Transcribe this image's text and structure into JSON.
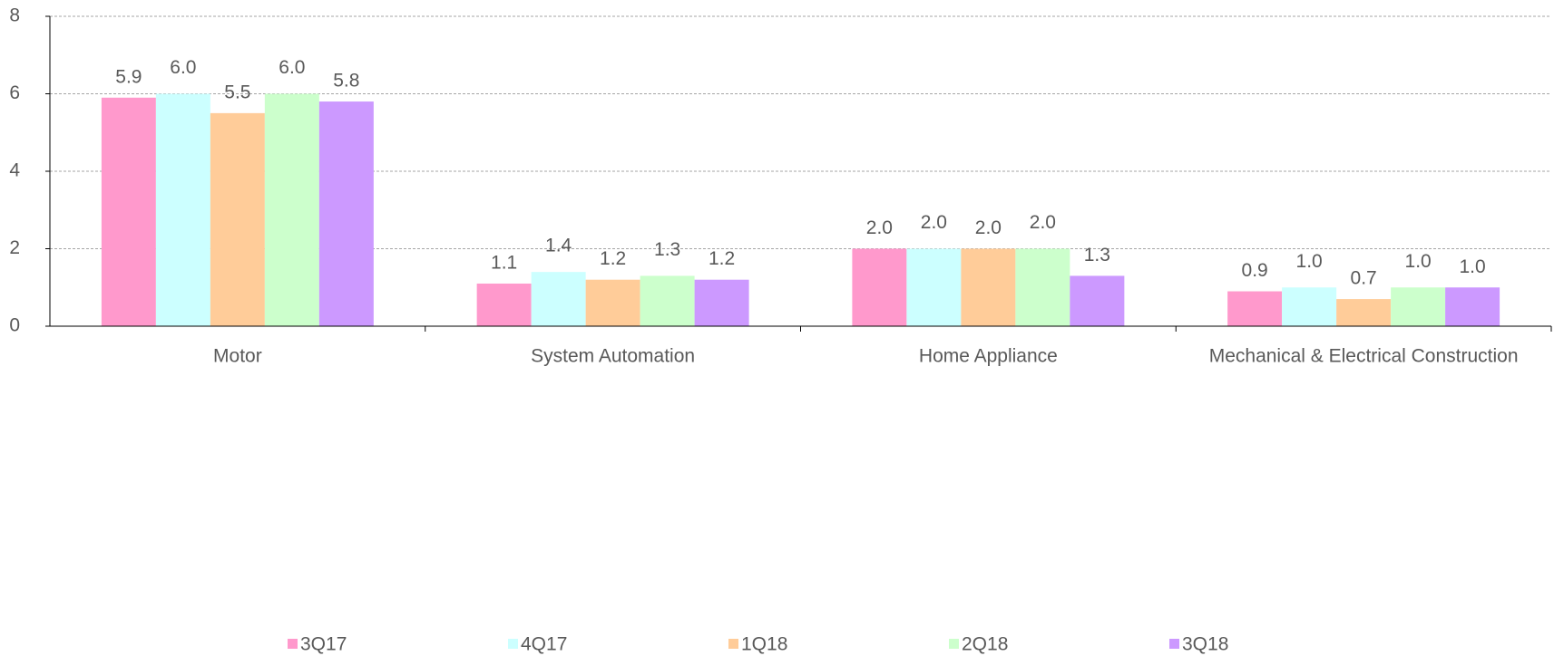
{
  "chart_data": {
    "type": "bar",
    "categories": [
      "Motor",
      "System Automation",
      "Home Appliance",
      "Mechanical & Electrical Construction"
    ],
    "series": [
      {
        "name": "3Q17",
        "color": "#ff99cc",
        "values": [
          5.9,
          1.1,
          2.0,
          0.9
        ],
        "value_labels": [
          "5.9",
          "1.1",
          "2.0",
          "0.9"
        ]
      },
      {
        "name": "4Q17",
        "color": "#ccffff",
        "values": [
          6.0,
          1.4,
          2.0,
          1.0
        ],
        "value_labels": [
          "6.0",
          "1.4",
          "2.0",
          "1.0"
        ]
      },
      {
        "name": "1Q18",
        "color": "#ffcc99",
        "values": [
          5.5,
          1.2,
          2.0,
          0.7
        ],
        "value_labels": [
          "5.5",
          "1.2",
          "2.0",
          "0.7"
        ]
      },
      {
        "name": "2Q18",
        "color": "#ccffcc",
        "values": [
          6.0,
          1.3,
          2.0,
          1.0
        ],
        "value_labels": [
          "6.0",
          "1.3",
          "2.0",
          "1.0"
        ]
      },
      {
        "name": "3Q18",
        "color": "#cc99ff",
        "values": [
          5.8,
          1.2,
          1.3,
          1.0
        ],
        "value_labels": [
          "5.8",
          "1.2",
          "1.3",
          "1.0"
        ]
      }
    ],
    "ylim": [
      0,
      8
    ],
    "yticks": [
      0,
      2,
      4,
      6,
      8
    ],
    "grid": true,
    "legend": "bottom"
  }
}
